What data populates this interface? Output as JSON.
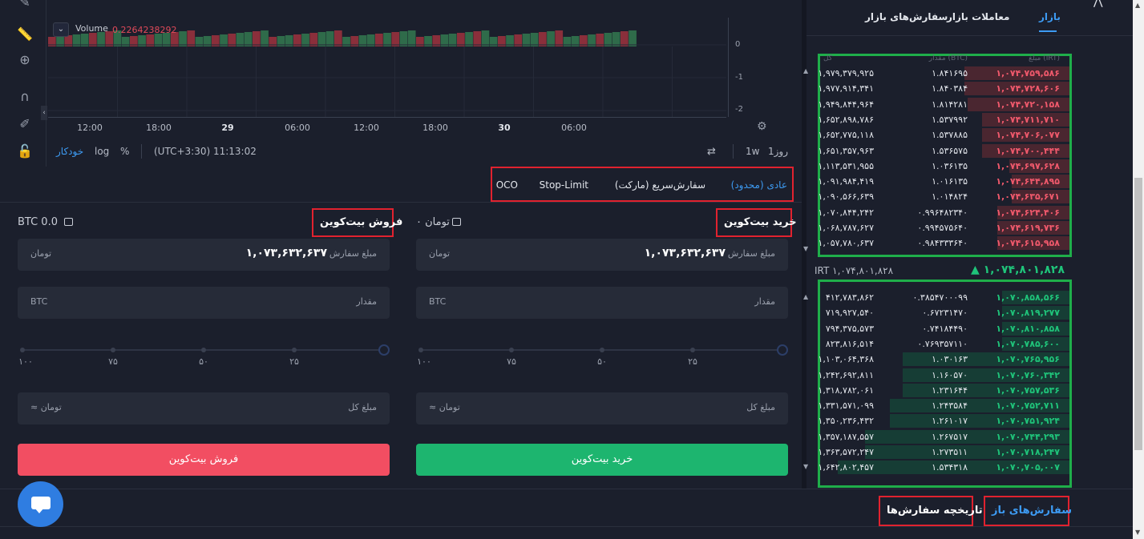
{
  "chart": {
    "volume_label": "Volume",
    "volume_value": "0.2264238292",
    "price_ticks": [
      "0",
      "-1",
      "-2"
    ],
    "time_labels": [
      {
        "text": "12:00",
        "bold": false
      },
      {
        "text": "18:00",
        "bold": false
      },
      {
        "text": "29",
        "bold": true
      },
      {
        "text": "06:00",
        "bold": false
      },
      {
        "text": "12:00",
        "bold": false
      },
      {
        "text": "18:00",
        "bold": false
      },
      {
        "text": "30",
        "bold": true
      },
      {
        "text": "06:00",
        "bold": false
      }
    ],
    "bottom": {
      "auto": "خودکار",
      "log": "log",
      "percent": "%",
      "clock": "(UTC+3:30) 11:13:02",
      "interval_1w": "1w",
      "interval_1d": "1روز"
    },
    "candle_colors": {
      "up": "#2f6b4a",
      "down": "#8a2f3b"
    }
  },
  "order_types": {
    "limit": "عادی (محدود)",
    "market": "سفارش‌سریع (مارکت)",
    "stop_limit": "Stop-Limit",
    "oco": "OCO"
  },
  "buy": {
    "title": "خرید بیت‌کوین",
    "balance": "۰ تومان",
    "price_label": "مبلغ سفارش",
    "price_value": "۱,۰۷۳,۶۳۲,۶۳۷",
    "price_unit": "تومان",
    "amount_label": "مقدار",
    "amount_unit": "BTC",
    "slider_labels": [
      "۲۵",
      "۵۰",
      "۷۵",
      "۱۰۰"
    ],
    "total_label": "مبلغ کل",
    "total_unit": "≈ تومان",
    "button": "خرید بیت‌کوین"
  },
  "sell": {
    "title": "فروش بیت‌کوین",
    "balance": "BTC 0.0",
    "price_label": "مبلغ سفارش",
    "price_value": "۱,۰۷۳,۶۳۲,۶۳۷",
    "price_unit": "تومان",
    "amount_label": "مقدار",
    "amount_unit": "BTC",
    "slider_labels": [
      "۲۵",
      "۵۰",
      "۷۵",
      "۱۰۰"
    ],
    "total_label": "مبلغ کل",
    "total_unit": "≈ تومان",
    "button": "فروش بیت‌کوین"
  },
  "market": {
    "tabs": {
      "market": "بازار",
      "trades": "معاملات بازار",
      "orders": "سفارش‌های بازار"
    },
    "headers": {
      "price": "مبلغ (IRT)",
      "qty": "مقدار (BTC)",
      "total": "کل"
    },
    "asks": [
      {
        "price": "۱,۰۷۴,۷۵۹,۵۸۶",
        "qty": "۱.۸۴۱۶۹۵",
        "total": "۱,۹۷۹,۳۷۹,۹۲۵",
        "fill": 0.42
      },
      {
        "price": "۱,۰۷۴,۷۲۸,۶۰۶",
        "qty": "۱.۸۴۰۳۸۴",
        "total": "۱,۹۷۷,۹۱۴,۳۴۱",
        "fill": 0.42
      },
      {
        "price": "۱,۰۷۴,۷۲۰,۱۵۸",
        "qty": "۱.۸۱۴۲۸۱",
        "total": "۱,۹۴۹,۸۴۴,۹۶۴",
        "fill": 0.41
      },
      {
        "price": "۱,۰۷۴,۷۱۱,۷۱۰",
        "qty": "۱.۵۳۷۹۹۲",
        "total": "۱,۶۵۲,۸۹۸,۷۸۶",
        "fill": 0.35
      },
      {
        "price": "۱,۰۷۴,۷۰۶,۰۷۷",
        "qty": "۱.۵۳۷۸۸۵",
        "total": "۱,۶۵۲,۷۷۵,۱۱۸",
        "fill": 0.35
      },
      {
        "price": "۱,۰۷۴,۷۰۰,۴۴۴",
        "qty": "۱.۵۳۶۵۷۵",
        "total": "۱,۶۵۱,۳۵۷,۹۶۳",
        "fill": 0.35
      },
      {
        "price": "۱,۰۷۴,۶۹۷,۶۲۸",
        "qty": "۱.۰۳۶۱۳۵",
        "total": "۱,۱۱۳,۵۳۱,۹۵۵",
        "fill": 0.24
      },
      {
        "price": "۱,۰۷۴,۶۴۴,۸۹۵",
        "qty": "۱.۰۱۶۱۳۵",
        "total": "۱,۰۹۱,۹۸۴,۴۱۹",
        "fill": 0.23
      },
      {
        "price": "۱,۰۷۴,۶۳۵,۶۷۱",
        "qty": "۱.۰۱۴۸۲۴",
        "total": "۱,۰۹۰,۵۶۶,۶۳۹",
        "fill": 0.23
      },
      {
        "price": "۱,۰۷۴,۶۲۴,۴۰۶",
        "qty": "۰.۹۹۶۴۸۲۳۴۰",
        "total": "۱,۰۷۰,۸۴۴,۲۴۲",
        "fill": 0.29
      },
      {
        "price": "۱,۰۷۴,۶۱۹,۷۳۶",
        "qty": "۰.۹۹۴۵۷۵۶۴۰",
        "total": "۱,۰۶۸,۷۸۷,۶۲۷",
        "fill": 0.29
      },
      {
        "price": "۱,۰۷۴,۶۱۵,۹۵۸",
        "qty": "۰.۹۸۴۳۳۳۶۴۰",
        "total": "۱,۰۵۷,۷۸۰,۶۳۷",
        "fill": 0.29
      }
    ],
    "last_price": {
      "left": "IRT ۱,۰۷۴,۸۰۱,۸۲۸",
      "right": "▲ ۱,۰۷۴,۸۰۱,۸۲۸"
    },
    "bids": [
      {
        "price": "۱,۰۷۰,۸۵۸,۵۶۶",
        "qty": "۰.۳۸۵۴۷۰۰۰۹۹",
        "total": "۴۱۲,۷۸۳,۸۶۲",
        "fill": 0.27
      },
      {
        "price": "۱,۰۷۰,۸۱۹,۲۷۷",
        "qty": "۰.۶۷۲۳۱۴۷۰",
        "total": "۷۱۹,۹۲۷,۵۴۰",
        "fill": 0.27
      },
      {
        "price": "۱,۰۷۰,۸۱۰,۸۵۸",
        "qty": "۰.۷۴۱۸۴۴۹۰",
        "total": "۷۹۴,۳۷۵,۵۷۳",
        "fill": 0.27
      },
      {
        "price": "۱,۰۷۰,۷۸۵,۶۰۰",
        "qty": "۰.۷۶۹۳۵۷۱۱۰",
        "total": "۸۲۳,۸۱۶,۵۱۴",
        "fill": 0.27
      },
      {
        "price": "۱,۰۷۰,۷۶۵,۹۵۶",
        "qty": "۱.۰۳۰۱۶۳",
        "total": "۱,۱۰۳,۰۶۴,۳۶۸",
        "fill": 0.67
      },
      {
        "price": "۱,۰۷۰,۷۶۰,۳۴۲",
        "qty": "۱.۱۶۰۵۷۰",
        "total": "۱,۲۴۲,۶۹۲,۸۱۱",
        "fill": 0.67
      },
      {
        "price": "۱,۰۷۰,۷۵۷,۵۳۶",
        "qty": "۱.۲۳۱۶۴۴",
        "total": "۱,۳۱۸,۷۸۲,۰۶۱",
        "fill": 0.67
      },
      {
        "price": "۱,۰۷۰,۷۵۲,۷۱۱",
        "qty": "۱.۲۴۳۵۸۴",
        "total": "۱,۳۳۱,۵۷۱,۰۹۹",
        "fill": 0.72
      },
      {
        "price": "۱,۰۷۰,۷۵۱,۹۲۴",
        "qty": "۱.۲۶۱۰۱۷",
        "total": "۱,۳۵۰,۲۳۶,۴۳۲",
        "fill": 0.72
      },
      {
        "price": "۱,۰۷۰,۷۴۴,۲۹۳",
        "qty": "۱.۲۶۷۵۱۷",
        "total": "۱,۳۵۷,۱۸۷,۵۵۷",
        "fill": 0.82
      },
      {
        "price": "۱,۰۷۰,۷۱۸,۲۴۷",
        "qty": "۱.۲۷۳۵۱۱",
        "total": "۱,۳۶۳,۵۷۲,۲۴۷",
        "fill": 0.82
      },
      {
        "price": "۱,۰۷۰,۷۰۵,۰۰۷",
        "qty": "۱.۵۳۴۳۱۸",
        "total": "۱,۶۴۲,۸۰۲,۴۵۷",
        "fill": 0.93
      }
    ]
  },
  "bottom_tabs": {
    "open": "سفارش‌های باز",
    "history": "تاریخچه سفارش‌ها"
  },
  "colors": {
    "accent": "#3d9bf3",
    "buy": "#1db56f",
    "sell": "#f24e62",
    "highlight": "#e1222f",
    "book_frame": "#1fae4a"
  }
}
